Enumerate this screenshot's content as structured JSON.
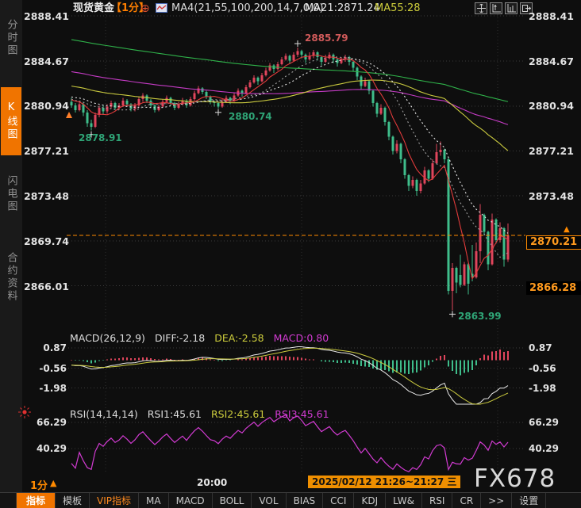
{
  "header": {
    "symbol": "现货黄金",
    "period": "【1分】",
    "plus": "⊕",
    "ma_settings": "MA4(21,55,100,200,14,7,0,0)",
    "ma21": "MA21:2871.24",
    "ma55": "MA55:28"
  },
  "sidebar": [
    "分时图",
    "K线图",
    "闪电图",
    "合约资料"
  ],
  "macd": {
    "title": "MACD(26,12,9)",
    "diff": "DIFF:-2.18",
    "dea": "DEA:-2.58",
    "hist": "MACD:0.80"
  },
  "rsi": {
    "title": "RSI(14,14,14)",
    "r1": "RSI1:45.61",
    "r2": "RSI2:45.61",
    "r3": "RSI3:45.61"
  },
  "statusbar": {
    "period": "1分",
    "time_left": "20:00",
    "range": "2025/02/12 21:26~21:27 三",
    "watermark": "FX678"
  },
  "ui": {
    "up_arrow": "▲"
  },
  "bottom_tabs": [
    "指标",
    "模板",
    "VIP指标",
    "MA",
    "MACD",
    "BOLL",
    "VOL",
    "BIAS",
    "CCI",
    "KDJ",
    "LW&",
    "RSI",
    "CR",
    ">>",
    "设置"
  ],
  "chart_data": {
    "type": "candlestick",
    "title": "现货黄金 1分钟K线 (spot gold 1-minute)",
    "y_ticks": [
      2888.41,
      2884.67,
      2880.94,
      2877.21,
      2873.48,
      2869.74,
      2866.01
    ],
    "macd_ticks": [
      0.87,
      -0.56,
      -1.98
    ],
    "rsi_ticks": [
      66.29,
      40.29
    ],
    "current_price": 2870.21,
    "secondary_price": 2866.28,
    "markers": [
      {
        "index": 5,
        "price": 2878.91,
        "type": "low"
      },
      {
        "index": 37,
        "price": 2880.74,
        "type": "low"
      },
      {
        "index": 57,
        "price": 2885.79,
        "type": "high"
      },
      {
        "index": 96,
        "price": 2863.99,
        "type": "low"
      }
    ],
    "ma_lines": [
      {
        "period": 200,
        "color": "#2fb24a",
        "dash": ""
      },
      {
        "period": 100,
        "color": "#c43bc4",
        "dash": ""
      },
      {
        "period": 55,
        "color": "#cbcb3f",
        "dash": ""
      },
      {
        "period": 21,
        "color": "#e8e8e8",
        "dash": "2,3"
      },
      {
        "period": 14,
        "color": "#9f9f9f",
        "dash": "2,3"
      },
      {
        "period": 7,
        "color": "#e03b3b",
        "dash": ""
      }
    ],
    "colors": {
      "up": "#e0455c",
      "down": "#3fbd8b",
      "diff": "#e8e8e8",
      "dea": "#cbcb3f",
      "rsi": "#d23bd2",
      "grid": "#3a3a3a",
      "current_line": "#ff8a00",
      "accent": "#f07400"
    },
    "candles": [
      [
        2881.3,
        2881.6,
        2880.8,
        2881.0
      ],
      [
        2881.0,
        2881.2,
        2880.4,
        2880.6
      ],
      [
        2880.6,
        2881.4,
        2880.5,
        2881.1
      ],
      [
        2881.1,
        2881.3,
        2880.1,
        2880.4
      ],
      [
        2880.4,
        2880.6,
        2879.2,
        2879.5
      ],
      [
        2879.5,
        2879.8,
        2878.91,
        2879.2
      ],
      [
        2879.2,
        2880.4,
        2879.1,
        2880.2
      ],
      [
        2880.2,
        2881.0,
        2880.0,
        2880.8
      ],
      [
        2880.8,
        2881.0,
        2880.2,
        2880.5
      ],
      [
        2880.5,
        2881.1,
        2880.3,
        2880.9
      ],
      [
        2880.9,
        2881.4,
        2880.7,
        2881.2
      ],
      [
        2881.2,
        2881.3,
        2880.6,
        2880.8
      ],
      [
        2880.8,
        2881.2,
        2880.6,
        2881.0
      ],
      [
        2881.0,
        2881.6,
        2880.9,
        2881.4
      ],
      [
        2881.4,
        2881.5,
        2880.9,
        2881.1
      ],
      [
        2881.1,
        2881.2,
        2880.5,
        2880.7
      ],
      [
        2880.7,
        2881.2,
        2880.5,
        2881.0
      ],
      [
        2881.0,
        2881.7,
        2880.9,
        2881.5
      ],
      [
        2881.5,
        2882.0,
        2881.3,
        2881.8
      ],
      [
        2881.8,
        2881.9,
        2881.2,
        2881.4
      ],
      [
        2881.4,
        2881.5,
        2880.8,
        2881.0
      ],
      [
        2881.0,
        2881.1,
        2880.4,
        2880.6
      ],
      [
        2880.6,
        2881.1,
        2880.5,
        2880.9
      ],
      [
        2880.9,
        2881.5,
        2880.8,
        2881.3
      ],
      [
        2881.3,
        2881.8,
        2881.1,
        2881.6
      ],
      [
        2881.6,
        2881.7,
        2881.0,
        2881.2
      ],
      [
        2881.2,
        2881.3,
        2880.6,
        2880.8
      ],
      [
        2880.8,
        2881.3,
        2880.7,
        2881.1
      ],
      [
        2881.1,
        2881.6,
        2881.0,
        2881.4
      ],
      [
        2881.4,
        2881.5,
        2880.8,
        2881.0
      ],
      [
        2881.0,
        2881.7,
        2880.9,
        2881.5
      ],
      [
        2881.5,
        2882.2,
        2881.4,
        2882.0
      ],
      [
        2882.0,
        2882.6,
        2881.9,
        2882.4
      ],
      [
        2882.4,
        2882.5,
        2881.9,
        2882.1
      ],
      [
        2882.1,
        2882.2,
        2881.5,
        2881.7
      ],
      [
        2881.7,
        2881.8,
        2881.1,
        2881.3
      ],
      [
        2881.3,
        2881.4,
        2880.9,
        2881.2
      ],
      [
        2881.2,
        2881.3,
        2880.74,
        2880.9
      ],
      [
        2880.9,
        2881.5,
        2880.8,
        2881.3
      ],
      [
        2881.3,
        2881.8,
        2881.2,
        2881.6
      ],
      [
        2881.6,
        2881.7,
        2881.1,
        2881.4
      ],
      [
        2881.4,
        2882.0,
        2881.3,
        2881.8
      ],
      [
        2881.8,
        2882.4,
        2881.7,
        2882.2
      ],
      [
        2882.2,
        2882.3,
        2881.7,
        2882.0
      ],
      [
        2882.0,
        2882.7,
        2881.9,
        2882.5
      ],
      [
        2882.5,
        2883.1,
        2882.4,
        2882.9
      ],
      [
        2882.9,
        2883.5,
        2882.8,
        2883.3
      ],
      [
        2883.3,
        2883.4,
        2882.7,
        2883.0
      ],
      [
        2883.0,
        2883.7,
        2882.9,
        2883.5
      ],
      [
        2883.5,
        2884.1,
        2883.4,
        2883.9
      ],
      [
        2883.9,
        2884.5,
        2883.8,
        2884.3
      ],
      [
        2884.3,
        2884.4,
        2883.7,
        2884.0
      ],
      [
        2884.0,
        2884.6,
        2883.9,
        2884.4
      ],
      [
        2884.4,
        2885.0,
        2884.3,
        2884.8
      ],
      [
        2884.8,
        2885.3,
        2884.7,
        2885.1
      ],
      [
        2885.1,
        2885.2,
        2884.4,
        2884.7
      ],
      [
        2884.7,
        2885.4,
        2884.6,
        2885.2
      ],
      [
        2885.2,
        2885.79,
        2885.0,
        2885.5
      ],
      [
        2885.5,
        2885.6,
        2884.9,
        2885.2
      ],
      [
        2885.2,
        2885.3,
        2884.5,
        2884.8
      ],
      [
        2884.8,
        2885.4,
        2884.7,
        2885.1
      ],
      [
        2885.1,
        2885.6,
        2884.9,
        2885.4
      ],
      [
        2885.4,
        2885.5,
        2884.7,
        2885.0
      ],
      [
        2885.0,
        2885.1,
        2884.3,
        2884.6
      ],
      [
        2884.6,
        2885.2,
        2884.5,
        2884.9
      ],
      [
        2884.9,
        2885.4,
        2884.8,
        2885.2
      ],
      [
        2885.2,
        2885.3,
        2884.5,
        2884.8
      ],
      [
        2884.8,
        2884.9,
        2884.2,
        2884.5
      ],
      [
        2884.5,
        2885.0,
        2884.4,
        2884.8
      ],
      [
        2884.8,
        2885.2,
        2884.6,
        2885.0
      ],
      [
        2885.0,
        2885.1,
        2884.3,
        2884.6
      ],
      [
        2884.6,
        2884.7,
        2883.8,
        2884.1
      ],
      [
        2884.1,
        2884.2,
        2883.1,
        2883.4
      ],
      [
        2883.4,
        2883.5,
        2882.3,
        2882.6
      ],
      [
        2882.6,
        2883.3,
        2882.5,
        2883.0
      ],
      [
        2883.0,
        2883.1,
        2881.9,
        2882.2
      ],
      [
        2882.2,
        2882.3,
        2880.9,
        2881.2
      ],
      [
        2881.2,
        2881.3,
        2880.0,
        2880.3
      ],
      [
        2880.3,
        2881.1,
        2880.2,
        2880.8
      ],
      [
        2880.8,
        2880.9,
        2879.3,
        2879.6
      ],
      [
        2879.6,
        2879.7,
        2878.1,
        2878.4
      ],
      [
        2878.4,
        2878.5,
        2876.9,
        2877.2
      ],
      [
        2877.2,
        2878.1,
        2877.0,
        2877.8
      ],
      [
        2877.8,
        2877.9,
        2876.2,
        2876.5
      ],
      [
        2876.5,
        2876.6,
        2874.9,
        2875.2
      ],
      [
        2875.2,
        2875.3,
        2873.9,
        2874.3
      ],
      [
        2874.3,
        2875.1,
        2874.1,
        2874.8
      ],
      [
        2874.8,
        2874.9,
        2873.5,
        2873.9
      ],
      [
        2873.9,
        2874.8,
        2873.7,
        2874.5
      ],
      [
        2874.5,
        2875.9,
        2874.4,
        2875.6
      ],
      [
        2875.6,
        2875.7,
        2874.6,
        2874.9
      ],
      [
        2874.9,
        2876.5,
        2874.8,
        2876.2
      ],
      [
        2876.2,
        2877.8,
        2876.1,
        2877.1
      ],
      [
        2877.1,
        2878.0,
        2876.8,
        2877.3
      ],
      [
        2877.3,
        2877.4,
        2876.2,
        2876.5
      ],
      [
        2876.5,
        2876.7,
        2865.3,
        2865.6
      ],
      [
        2865.6,
        2867.9,
        2863.99,
        2867.5
      ],
      [
        2867.5,
        2867.6,
        2865.4,
        2866.3
      ],
      [
        2866.9,
        2868.6,
        2865.9,
        2866.1
      ],
      [
        2866.1,
        2868.0,
        2866.0,
        2867.8
      ],
      [
        2867.8,
        2867.9,
        2865.3,
        2866.2
      ],
      [
        2867.0,
        2869.4,
        2866.4,
        2866.7
      ],
      [
        2866.7,
        2869.6,
        2866.6,
        2868.9
      ],
      [
        2868.9,
        2872.8,
        2867.9,
        2871.9
      ],
      [
        2871.9,
        2872.0,
        2870.2,
        2870.5
      ],
      [
        2870.5,
        2870.6,
        2867.3,
        2867.8
      ],
      [
        2867.8,
        2872.0,
        2867.7,
        2871.5
      ],
      [
        2871.5,
        2871.6,
        2869.5,
        2869.8
      ],
      [
        2869.8,
        2871.3,
        2869.6,
        2870.8
      ],
      [
        2870.8,
        2870.9,
        2867.6,
        2868.2
      ],
      [
        2868.2,
        2871.2,
        2868.0,
        2870.21
      ]
    ]
  }
}
